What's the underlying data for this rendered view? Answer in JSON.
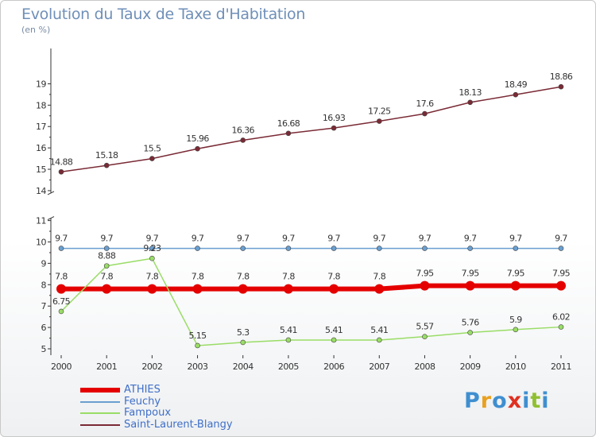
{
  "title": "Evolution du Taux de Taxe d'Habitation",
  "subtitle": "(en %)",
  "logo": {
    "text": "Proxiti",
    "colors": [
      "#3f8fd0",
      "#e8a020",
      "#3f8fd0",
      "#e03020",
      "#3f8fd0",
      "#90c030",
      "#3f8fd0"
    ]
  },
  "chart_data": {
    "type": "line",
    "title": "Evolution du Taux de Taxe d'Habitation",
    "subtitle": "(en %)",
    "x": [
      "2000",
      "2001",
      "2002",
      "2003",
      "2004",
      "2005",
      "2006",
      "2007",
      "2008",
      "2009",
      "2010",
      "2011"
    ],
    "yticks": [
      5,
      6,
      7,
      8,
      9,
      10,
      11,
      14,
      15,
      16,
      17,
      18,
      19
    ],
    "ytick_labels": [
      "5",
      "6",
      "7",
      "8",
      "9",
      "10",
      "11",
      "14",
      "15",
      "16",
      "17",
      "18",
      "19"
    ],
    "y_axis_break": {
      "lower": 11,
      "upper": 14
    },
    "legend_position": "bottom-left",
    "grid": false,
    "series": [
      {
        "name": "ATHIES",
        "color": "#e50000",
        "values": [
          7.8,
          7.8,
          7.8,
          7.8,
          7.8,
          7.8,
          7.8,
          7.8,
          7.95,
          7.95,
          7.95,
          7.95
        ],
        "labels": [
          "7.8",
          "7.8",
          "7.8",
          "7.8",
          "7.8",
          "7.8",
          "7.8",
          "7.8",
          "7.95",
          "7.95",
          "7.95",
          "7.95"
        ]
      },
      {
        "name": "Feuchy",
        "color": "#6a9fd0",
        "values": [
          9.7,
          9.7,
          9.7,
          9.7,
          9.7,
          9.7,
          9.7,
          9.7,
          9.7,
          9.7,
          9.7,
          9.7
        ],
        "labels": [
          "9.7",
          "9.7",
          "9.7",
          "9.7",
          "9.7",
          "9.7",
          "9.7",
          "9.7",
          "9.7",
          "9.7",
          "9.7",
          "9.7"
        ]
      },
      {
        "name": "Fampoux",
        "color": "#99dd66",
        "values": [
          6.75,
          8.88,
          9.23,
          5.15,
          5.3,
          5.41,
          5.41,
          5.41,
          5.57,
          5.76,
          5.9,
          6.02
        ],
        "labels": [
          "6.75",
          "8.88",
          "9.23",
          "5.15",
          "5.3",
          "5.41",
          "5.41",
          "5.41",
          "5.57",
          "5.76",
          "5.9",
          "6.02"
        ]
      },
      {
        "name": "Saint-Laurent-Blangy",
        "color": "#7a2a35",
        "values": [
          14.88,
          15.18,
          15.5,
          15.96,
          16.36,
          16.68,
          16.93,
          17.25,
          17.6,
          18.13,
          18.49,
          18.86
        ],
        "labels": [
          "14.88",
          "15.18",
          "15.5",
          "15.96",
          "16.36",
          "16.68",
          "16.93",
          "17.25",
          "17.6",
          "18.13",
          "18.49",
          "18.86"
        ]
      }
    ]
  }
}
